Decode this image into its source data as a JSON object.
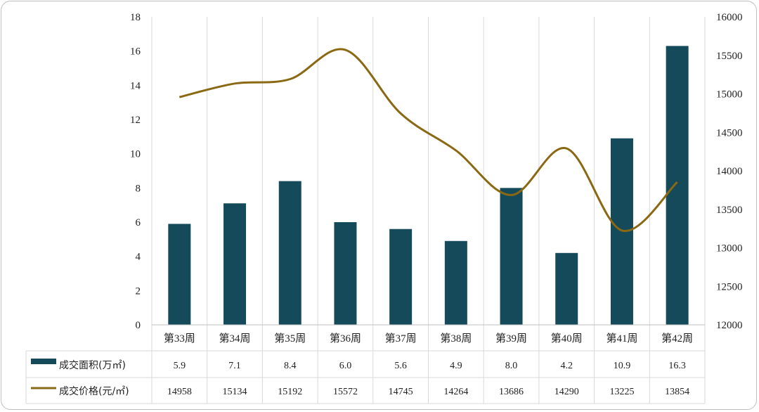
{
  "chart_data": {
    "type": "bar",
    "categories": [
      "第33周",
      "第34周",
      "第35周",
      "第36周",
      "第37周",
      "第38周",
      "第39周",
      "第40周",
      "第41周",
      "第42周"
    ],
    "series": [
      {
        "name": "成交面积(万㎡)",
        "type": "bar",
        "axis": "left",
        "color": "#154a5a",
        "values": [
          5.9,
          7.1,
          8.4,
          6.0,
          5.6,
          4.9,
          8.0,
          4.2,
          10.9,
          16.3
        ],
        "labels": [
          "5.9",
          "7.1",
          "8.4",
          "6.0",
          "5.6",
          "4.9",
          "8.0",
          "4.2",
          "10.9",
          "16.3"
        ]
      },
      {
        "name": "成交价格(元/㎡)",
        "type": "line",
        "smooth": true,
        "axis": "right",
        "color": "#8b6914",
        "values": [
          14958,
          15134,
          15192,
          15572,
          14745,
          14264,
          13686,
          14290,
          13225,
          13854
        ],
        "labels": [
          "14958",
          "15134",
          "15192",
          "15572",
          "14745",
          "14264",
          "13686",
          "14290",
          "13225",
          "13854"
        ]
      }
    ],
    "y_left": {
      "min": 0,
      "max": 18,
      "step": 2,
      "ticks": [
        "0",
        "2",
        "4",
        "6",
        "8",
        "10",
        "12",
        "14",
        "16",
        "18"
      ]
    },
    "y_right": {
      "min": 12000,
      "max": 16000,
      "step": 500,
      "ticks": [
        "12000",
        "12500",
        "13000",
        "13500",
        "14000",
        "14500",
        "15000",
        "15500",
        "16000"
      ]
    },
    "grid": "vertical",
    "legend": "data-table-below"
  }
}
